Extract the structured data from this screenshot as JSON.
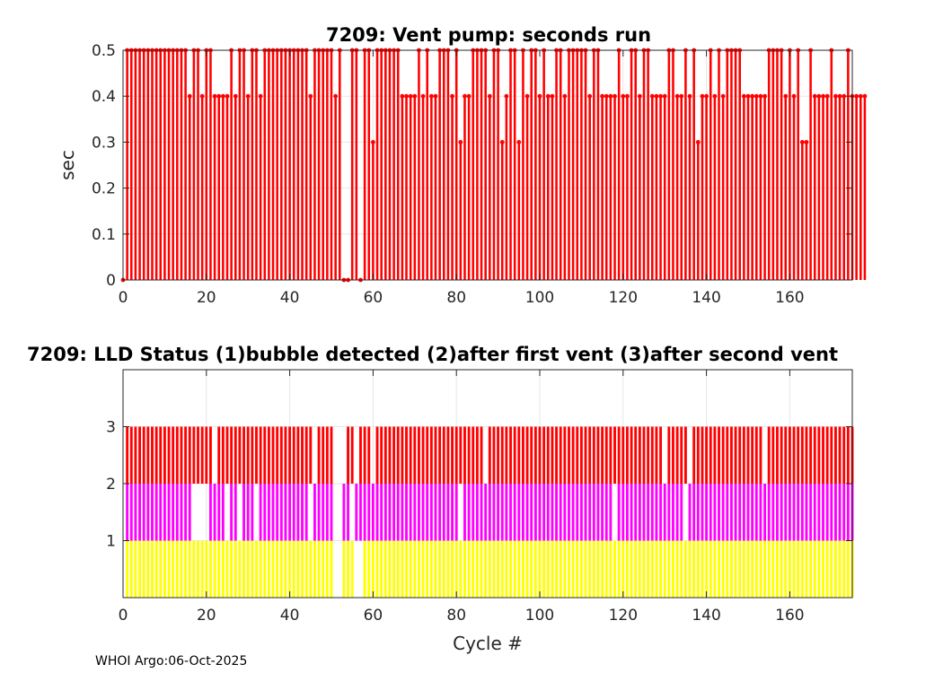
{
  "footer": "WHOI Argo:06-Oct-2025",
  "chart_data": [
    {
      "type": "bar",
      "title": "7209: Vent pump: seconds run",
      "ylabel": "sec",
      "xlabel": "",
      "xlim": [
        0,
        175
      ],
      "ylim": [
        0,
        0.5
      ],
      "xticks": [
        0,
        20,
        40,
        60,
        80,
        100,
        120,
        140,
        160
      ],
      "yticks": [
        0,
        0.1,
        0.2,
        0.3,
        0.4,
        0.5
      ],
      "ytick_labels": [
        "0",
        "0.1",
        "0.2",
        "0.3",
        "0.4",
        "0.5"
      ],
      "grid": true,
      "series": [
        {
          "color": "#ff0000",
          "x_start": 0,
          "values": [
            0,
            0.5,
            0.5,
            0.5,
            0.5,
            0.5,
            0.5,
            0.5,
            0.5,
            0.5,
            0.5,
            0.5,
            0.5,
            0.5,
            0.5,
            0.5,
            0.4,
            0.5,
            0.5,
            0.4,
            0.5,
            0.5,
            0.4,
            0.4,
            0.4,
            0.4,
            0.5,
            0.4,
            0.5,
            0.5,
            0.4,
            0.5,
            0.5,
            0.4,
            0.5,
            0.5,
            0.5,
            0.5,
            0.5,
            0.5,
            0.5,
            0.5,
            0.5,
            0.5,
            0.5,
            0.4,
            0.5,
            0.5,
            0.5,
            0.5,
            0.5,
            0.4,
            0.5,
            0,
            0,
            0.5,
            0.5,
            0,
            0.5,
            0.5,
            0.3,
            0.5,
            0.5,
            0.5,
            0.5,
            0.5,
            0.5,
            0.4,
            0.4,
            0.4,
            0.4,
            0.5,
            0.4,
            0.5,
            0.4,
            0.4,
            0.5,
            0.5,
            0.5,
            0.4,
            0.5,
            0.3,
            0.4,
            0.4,
            0.5,
            0.5,
            0.5,
            0.5,
            0.4,
            0.5,
            0.5,
            0.3,
            0.4,
            0.5,
            0.5,
            0.3,
            0.5,
            0.4,
            0.5,
            0.5,
            0.4,
            0.5,
            0.4,
            0.4,
            0.5,
            0.5,
            0.4,
            0.5,
            0.5,
            0.5,
            0.5,
            0.5,
            0.4,
            0.5,
            0.5,
            0.4,
            0.4,
            0.4,
            0.4,
            0.5,
            0.4,
            0.4,
            0.5,
            0.5,
            0.4,
            0.5,
            0.5,
            0.4,
            0.4,
            0.4,
            0.4,
            0.5,
            0.5,
            0.4,
            0.4,
            0.5,
            0.4,
            0.5,
            0.3,
            0.4,
            0.4,
            0.5,
            0.4,
            0.5,
            0.4,
            0.5,
            0.5,
            0.5,
            0.5,
            0.4,
            0.4,
            0.4,
            0.4,
            0.4,
            0.4,
            0.5,
            0.5,
            0.5,
            0.5,
            0.4,
            0.5,
            0.4,
            0.5,
            0.3,
            0.3,
            0.5,
            0.4,
            0.4,
            0.4,
            0.4,
            0.5,
            0.4,
            0.4,
            0.4,
            0.5,
            0.4,
            0.4,
            0.4,
            0.4
          ]
        }
      ]
    },
    {
      "type": "bar",
      "title": "7209: LLD Status   (1)bubble detected   (2)after first vent  (3)after second vent",
      "xlabel": "Cycle #",
      "ylabel": "",
      "xlim": [
        0,
        175
      ],
      "ylim": [
        0,
        4
      ],
      "xticks": [
        0,
        20,
        40,
        60,
        80,
        100,
        120,
        140,
        160
      ],
      "yticks": [
        1,
        2,
        3
      ],
      "ytick_labels": [
        "1",
        "2",
        "3"
      ],
      "grid": true,
      "series": [
        {
          "name": "(3)after second vent",
          "color": "#ff0000",
          "level": 3,
          "x_start": 1,
          "flags": [
            1,
            1,
            1,
            1,
            1,
            1,
            1,
            1,
            1,
            1,
            1,
            1,
            1,
            1,
            1,
            1,
            1,
            1,
            1,
            1,
            1,
            0,
            1,
            1,
            1,
            1,
            1,
            1,
            1,
            1,
            1,
            1,
            1,
            1,
            1,
            1,
            1,
            1,
            1,
            1,
            1,
            1,
            1,
            1,
            1,
            0,
            1,
            1,
            1,
            1,
            0,
            0,
            0,
            1,
            1,
            0,
            1,
            1,
            1,
            0,
            1,
            1,
            1,
            1,
            1,
            1,
            1,
            1,
            1,
            1,
            1,
            1,
            1,
            1,
            1,
            1,
            1,
            1,
            1,
            1,
            1,
            1,
            1,
            1,
            1,
            1,
            0,
            1,
            1,
            1,
            1,
            1,
            1,
            1,
            1,
            1,
            1,
            1,
            1,
            1,
            1,
            1,
            1,
            1,
            1,
            1,
            1,
            1,
            1,
            1,
            1,
            1,
            1,
            1,
            1,
            1,
            1,
            1,
            1,
            1,
            1,
            1,
            1,
            1,
            1,
            1,
            1,
            1,
            1,
            0,
            1,
            1,
            1,
            1,
            1,
            0,
            1,
            1,
            1,
            1,
            1,
            1,
            1,
            1,
            1,
            1,
            1,
            1,
            1,
            1,
            1,
            1,
            1,
            0,
            1,
            1,
            1,
            1,
            1,
            1,
            1,
            1,
            1,
            1,
            1,
            1,
            1,
            1,
            1,
            1,
            1,
            1,
            1,
            1,
            1
          ]
        },
        {
          "name": "(2)after first vent",
          "color": "#ff00ff",
          "level": 2,
          "x_start": 1,
          "flags": [
            1,
            1,
            1,
            1,
            1,
            1,
            1,
            1,
            1,
            1,
            1,
            1,
            1,
            1,
            1,
            1,
            0,
            0,
            0,
            0,
            1,
            1,
            1,
            1,
            0,
            1,
            1,
            0,
            1,
            1,
            1,
            0,
            1,
            1,
            1,
            1,
            1,
            1,
            1,
            1,
            1,
            1,
            1,
            1,
            0,
            1,
            1,
            1,
            1,
            1,
            0,
            0,
            1,
            1,
            0,
            1,
            1,
            1,
            1,
            1,
            1,
            1,
            1,
            1,
            1,
            1,
            1,
            1,
            1,
            1,
            1,
            1,
            1,
            1,
            1,
            1,
            1,
            1,
            1,
            1,
            0,
            1,
            1,
            1,
            1,
            1,
            1,
            1,
            1,
            1,
            1,
            1,
            1,
            1,
            1,
            1,
            1,
            1,
            1,
            1,
            1,
            1,
            1,
            1,
            1,
            1,
            1,
            1,
            1,
            1,
            1,
            1,
            1,
            1,
            1,
            1,
            1,
            0,
            1,
            1,
            1,
            1,
            1,
            1,
            1,
            1,
            1,
            1,
            1,
            1,
            1,
            1,
            1,
            1,
            0,
            1,
            1,
            1,
            1,
            1,
            1,
            1,
            1,
            1,
            1,
            1,
            1,
            1,
            1,
            1,
            1,
            1,
            1,
            1,
            1,
            1,
            1,
            1,
            1,
            1,
            1,
            1,
            1,
            1,
            1,
            1,
            1,
            1,
            1,
            1,
            1,
            1,
            1,
            1,
            1
          ]
        },
        {
          "name": "(1)bubble detected",
          "color": "#ffff00",
          "level": 1,
          "x_start": 1,
          "flags": [
            1,
            1,
            1,
            1,
            1,
            1,
            1,
            1,
            1,
            1,
            1,
            1,
            1,
            1,
            1,
            1,
            1,
            1,
            1,
            1,
            1,
            1,
            1,
            1,
            1,
            1,
            1,
            1,
            1,
            1,
            1,
            1,
            1,
            1,
            1,
            1,
            1,
            1,
            1,
            1,
            1,
            1,
            1,
            1,
            1,
            1,
            1,
            1,
            1,
            1,
            0,
            0,
            1,
            1,
            1,
            0,
            0,
            1,
            1,
            1,
            1,
            1,
            1,
            1,
            1,
            1,
            1,
            1,
            1,
            1,
            1,
            1,
            1,
            1,
            1,
            1,
            1,
            1,
            1,
            1,
            1,
            1,
            1,
            1,
            1,
            1,
            1,
            1,
            1,
            1,
            1,
            1,
            1,
            1,
            1,
            1,
            1,
            1,
            1,
            1,
            1,
            1,
            1,
            1,
            1,
            1,
            1,
            1,
            1,
            1,
            1,
            1,
            1,
            1,
            1,
            1,
            1,
            1,
            1,
            1,
            1,
            1,
            1,
            1,
            1,
            1,
            1,
            1,
            1,
            1,
            1,
            1,
            1,
            1,
            1,
            1,
            1,
            1,
            1,
            1,
            1,
            1,
            1,
            1,
            1,
            1,
            1,
            1,
            1,
            1,
            1,
            1,
            1,
            1,
            1,
            1,
            1,
            1,
            1,
            1,
            1,
            1,
            1,
            1,
            1,
            1,
            1,
            1,
            1,
            1,
            1,
            1,
            1,
            1,
            1
          ]
        }
      ]
    }
  ]
}
